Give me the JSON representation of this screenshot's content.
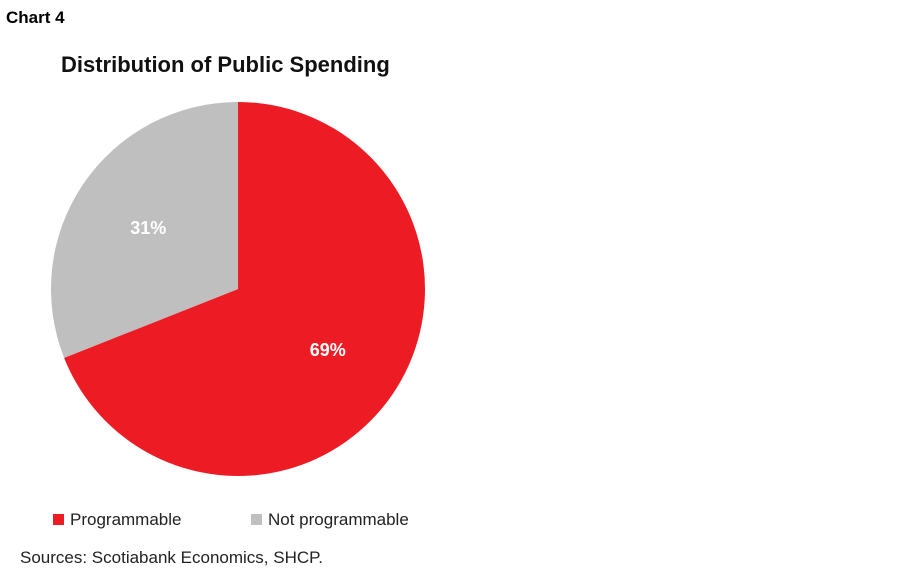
{
  "chart_label": "Chart 4",
  "sources": "Sources: Scotiabank Economics, SHCP.",
  "colors": {
    "programmable": "#ED1C24",
    "not_programmable": "#BFBFBF"
  },
  "chart_data": {
    "type": "pie",
    "title": "Distribution of Public Spending",
    "slices": [
      {
        "label": "Programmable",
        "value": 69,
        "data_label": "69%",
        "color": "#ED1C24"
      },
      {
        "label": "Not programmable",
        "value": 31,
        "data_label": "31%",
        "color": "#BFBFBF"
      }
    ],
    "start_angle_deg": 0,
    "direction": "clockwise",
    "legend_position": "bottom-left"
  }
}
